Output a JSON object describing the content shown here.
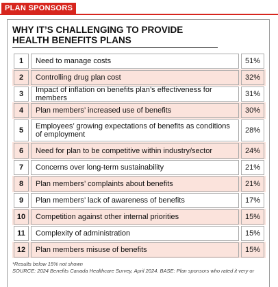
{
  "section_tag": "PLAN SPONSORS",
  "title": "WHY IT’S CHALLENGING TO PROVIDE HEALTH BENEFITS PLANS",
  "table": {
    "rows": [
      [
        1,
        "Need to manage costs",
        "51%"
      ],
      [
        2,
        "Controlling drug plan cost",
        "32%"
      ],
      [
        3,
        "Impact of inflation on benefits plan’s effectiveness for members",
        "31%"
      ],
      [
        4,
        "Plan members’ increased use of benefits",
        "30%"
      ],
      [
        5,
        "Employees’ growing expectations of benefits as conditions of employment",
        "28%"
      ],
      [
        6,
        "Need for plan to be competitive within industry/sector",
        "24%"
      ],
      [
        7,
        "Concerns over long-term sustainability",
        "21%"
      ],
      [
        8,
        "Plan members’ complaints about benefits",
        "21%"
      ],
      [
        9,
        "Plan members’ lack of awareness of benefits",
        "17%"
      ],
      [
        10,
        "Competition against other internal priorities",
        "15%"
      ],
      [
        11,
        "Complexity of administration",
        "15%"
      ],
      [
        12,
        "Plan members misuse of benefits",
        "15%"
      ]
    ]
  },
  "notes": [
    "*Results below 15% not shown",
    "SOURCE: 2024 Benefits Canada Healthcare Survey, April 2024. BASE: Plan sponsors who rated it very or"
  ]
}
